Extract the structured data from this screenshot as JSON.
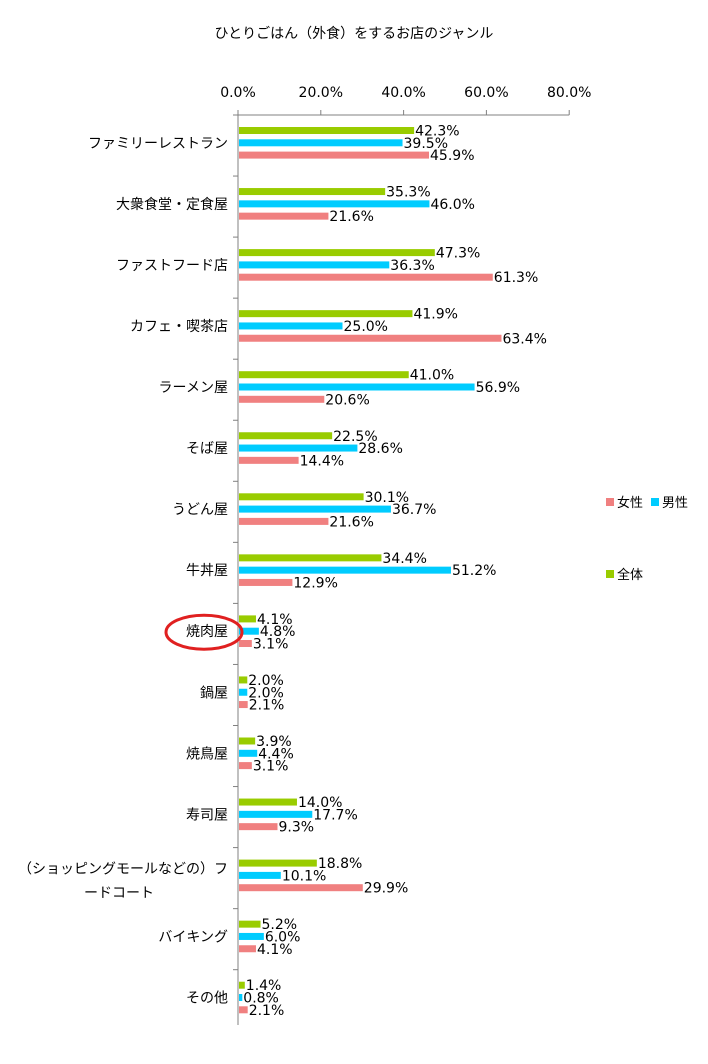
{
  "chart_data": {
    "type": "bar",
    "orientation": "horizontal",
    "title": "ひとりごはん（外食）をするお店のジャンル",
    "xlim": [
      0,
      80
    ],
    "x_ticks": [
      "0.0%",
      "20.0%",
      "40.0%",
      "60.0%",
      "80.0%"
    ],
    "x_axis_position": "top",
    "grid": false,
    "legend_placement": "right",
    "categories": [
      "ファミリーレストラン",
      "大衆食堂・定食屋",
      "ファストフード店",
      "カフェ・喫茶店",
      "ラーメン屋",
      "そば屋",
      "うどん屋",
      "牛丼屋",
      "焼肉屋",
      "鍋屋",
      "焼鳥屋",
      "寿司屋",
      "（ショッピングモールなどの）フードコート",
      "バイキング",
      "その他"
    ],
    "category_lines": [
      [
        "ファミリーレストラン"
      ],
      [
        "大衆食堂・定食屋"
      ],
      [
        "ファストフード店"
      ],
      [
        "カフェ・喫茶店"
      ],
      [
        "ラーメン屋"
      ],
      [
        "そば屋"
      ],
      [
        "うどん屋"
      ],
      [
        "牛丼屋"
      ],
      [
        "焼肉屋"
      ],
      [
        "鍋屋"
      ],
      [
        "焼鳥屋"
      ],
      [
        "寿司屋"
      ],
      [
        "（ショッピングモールなどの）フ",
        "ードコート"
      ],
      [
        "バイキング"
      ],
      [
        "その他"
      ]
    ],
    "highlighted_category": "焼肉屋",
    "series": [
      {
        "name": "全体",
        "color": "#99cc00",
        "values": [
          42.3,
          35.3,
          47.3,
          41.9,
          41.0,
          22.5,
          30.1,
          34.4,
          4.1,
          2.0,
          3.9,
          14.0,
          18.8,
          5.2,
          1.4
        ],
        "labels": [
          "42.3%",
          "35.3%",
          "47.3%",
          "41.9%",
          "41.0%",
          "22.5%",
          "30.1%",
          "34.4%",
          "4.1%",
          "2.0%",
          "3.9%",
          "14.0%",
          "18.8%",
          "5.2%",
          "1.4%"
        ]
      },
      {
        "name": "男性",
        "color": "#00ccff",
        "values": [
          39.5,
          46.0,
          36.3,
          25.0,
          56.9,
          28.6,
          36.7,
          51.2,
          4.8,
          2.0,
          4.4,
          17.7,
          10.1,
          6.0,
          0.8
        ],
        "labels": [
          "39.5%",
          "46.0%",
          "36.3%",
          "25.0%",
          "56.9%",
          "28.6%",
          "36.7%",
          "51.2%",
          "4.8%",
          "2.0%",
          "4.4%",
          "17.7%",
          "10.1%",
          "6.0%",
          "0.8%"
        ]
      },
      {
        "name": "女性",
        "color": "#f08080",
        "values": [
          45.9,
          21.6,
          61.3,
          63.4,
          20.6,
          14.4,
          21.6,
          12.9,
          3.1,
          2.1,
          3.1,
          9.3,
          29.9,
          4.1,
          2.1
        ],
        "labels": [
          "45.9%",
          "21.6%",
          "61.3%",
          "63.4%",
          "20.6%",
          "14.4%",
          "21.6%",
          "12.9%",
          "3.1%",
          "2.1%",
          "3.1%",
          "9.3%",
          "29.9%",
          "4.1%",
          "2.1%"
        ]
      }
    ],
    "highlight_color": "#e02020",
    "axis_color": "#808080"
  }
}
